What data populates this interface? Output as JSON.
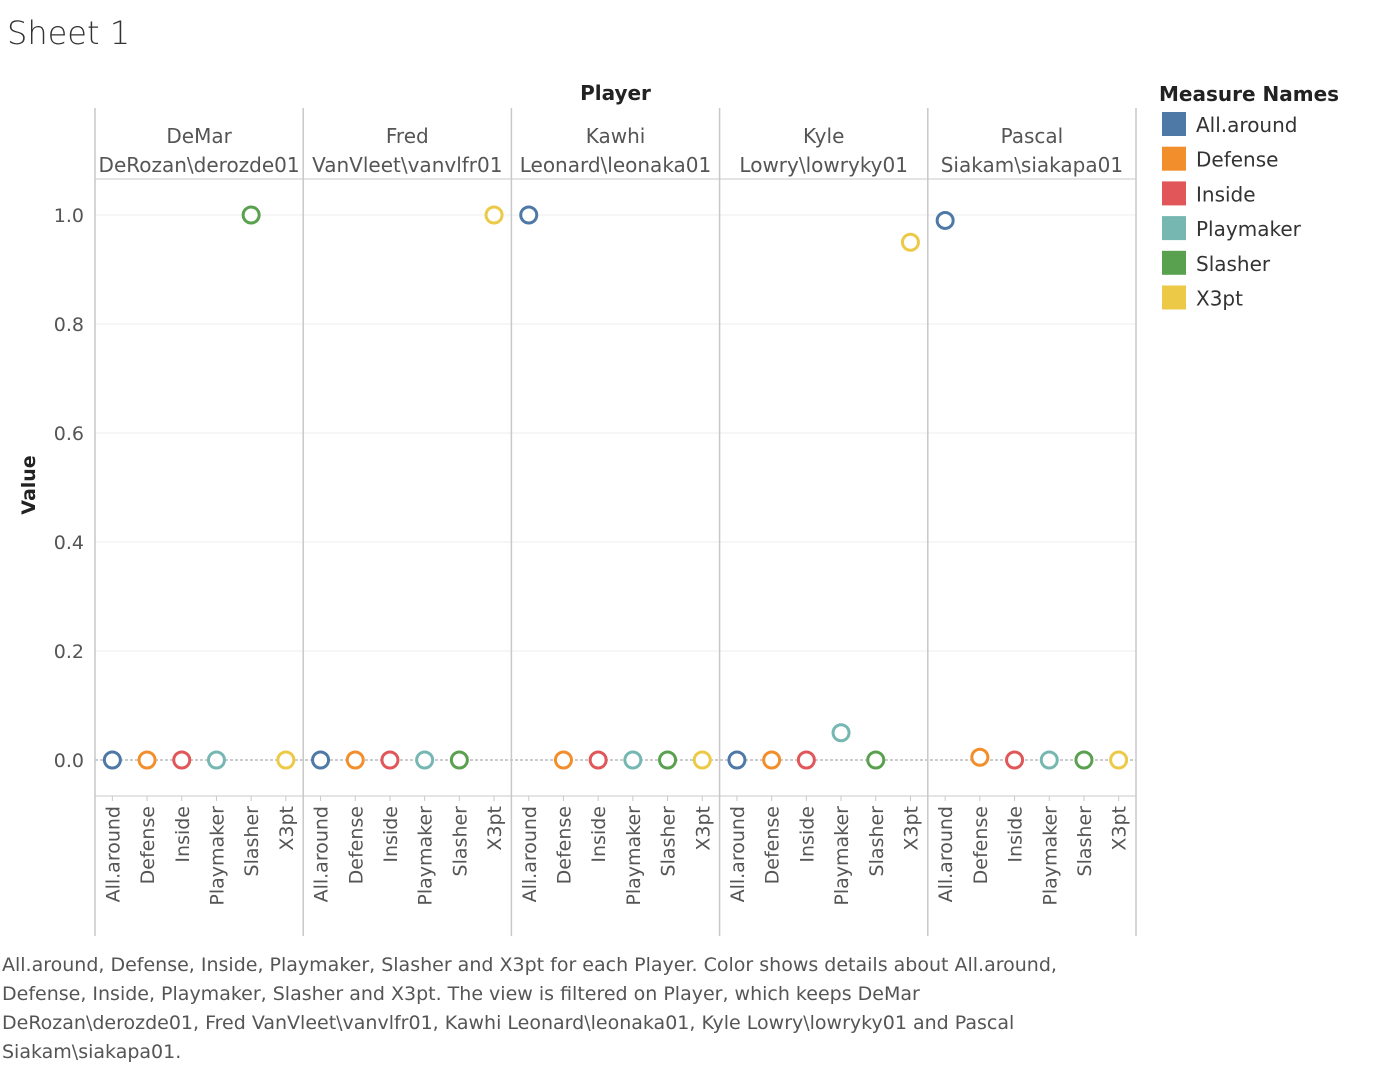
{
  "sheet_title": "Sheet 1",
  "caption": "All.around, Defense, Inside, Playmaker, Slasher and X3pt for each Player.  Color shows details about All.around, Defense, Inside, Playmaker, Slasher and X3pt. The view is filtered on Player, which keeps DeMar DeRozan\\derozde01, Fred VanVleet\\vanvlfr01, Kawhi Leonard\\leonaka01, Kyle Lowry\\lowryky01 and Pascal Siakam\\siakapa01.",
  "colors": {
    "All.around": "#4e79a7",
    "Defense": "#f28e2b",
    "Inside": "#e15759",
    "Playmaker": "#76b7b2",
    "Slasher": "#59a14f",
    "X3pt": "#edc948"
  },
  "chart_data": {
    "type": "scatter",
    "column_header": "Player",
    "xlabel": "",
    "ylabel": "Value",
    "ylim": [
      -0.066,
      1.066
    ],
    "yticks": [
      0.0,
      0.2,
      0.4,
      0.6,
      0.8,
      1.0
    ],
    "ytick_labels": [
      "0.0",
      "0.2",
      "0.4",
      "0.6",
      "0.8",
      "1.0"
    ],
    "grid": true,
    "legend_title": "Measure Names",
    "legend_position": "right",
    "categories": [
      "All.around",
      "Defense",
      "Inside",
      "Playmaker",
      "Slasher",
      "X3pt"
    ],
    "panels": [
      {
        "player_line1": "DeMar",
        "player_line2": "DeRozan\\derozde01",
        "values": [
          0.0,
          0.0,
          0.0,
          0.0,
          1.0,
          0.0
        ]
      },
      {
        "player_line1": "Fred",
        "player_line2": "VanVleet\\vanvlfr01",
        "values": [
          0.0,
          0.0,
          0.0,
          0.0,
          0.0,
          1.0
        ]
      },
      {
        "player_line1": "Kawhi",
        "player_line2": "Leonard\\leonaka01",
        "values": [
          1.0,
          0.0,
          0.0,
          0.0,
          0.0,
          0.0
        ]
      },
      {
        "player_line1": "Kyle",
        "player_line2": "Lowry\\lowryky01",
        "values": [
          0.0,
          0.0,
          0.0,
          0.05,
          0.0,
          0.95
        ]
      },
      {
        "player_line1": "Pascal",
        "player_line2": "Siakam\\siakapa01",
        "values": [
          0.99,
          0.005,
          0.0,
          0.0,
          0.0,
          0.0
        ]
      }
    ]
  }
}
